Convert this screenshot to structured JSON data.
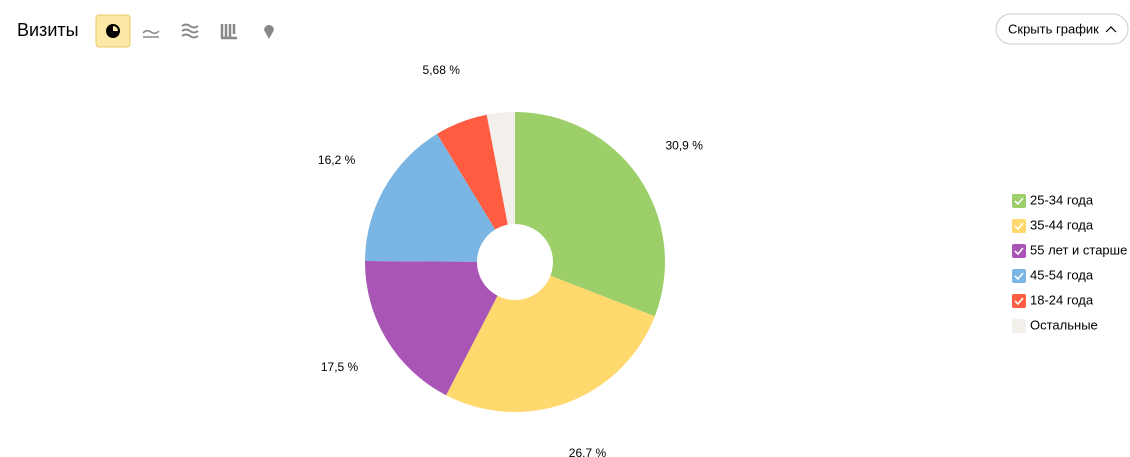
{
  "toolbar": {
    "hide_button": "Скрыть график"
  },
  "chart_data": {
    "type": "pie",
    "title": "Визиты",
    "categories": [
      "25-34 года",
      "35-44 года",
      "55 лет и старше",
      "45-54 года",
      "18-24 года",
      "Остальные"
    ],
    "values": [
      30.9,
      26.7,
      17.5,
      16.2,
      5.68,
      3.02
    ],
    "value_labels": [
      "30,9 %",
      "26,7 %",
      "17,5 %",
      "16,2 %",
      "5,68 %",
      null
    ],
    "colors": [
      "#9ccf69",
      "#ffd96d",
      "#a855b6",
      "#7ab5e3",
      "#ff5c42",
      "#f3f0eb"
    ],
    "donut": true,
    "legend": "right"
  }
}
